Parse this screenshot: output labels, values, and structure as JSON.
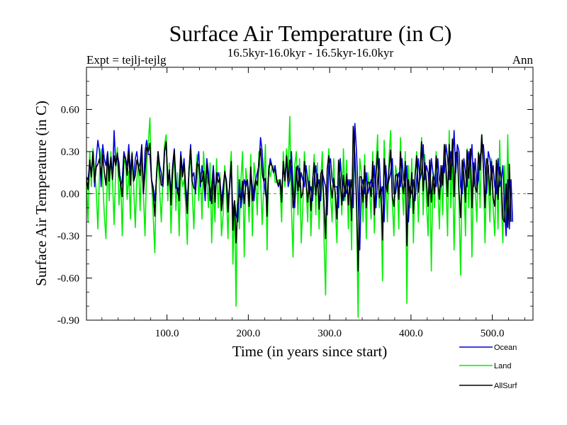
{
  "chart_data": {
    "type": "line",
    "title": "Surface Air Temperature (in C)",
    "subtitle": "16.5kyr-16.0kyr - 16.5kyr-16.0kyr",
    "left_label": "Expt = tejlj-tejlg",
    "right_label": "Ann",
    "xlabel": "Time (in years since start)",
    "ylabel": "Surface Air Temperature (in C)",
    "xlim": [
      1,
      550
    ],
    "ylim": [
      -0.9,
      0.9
    ],
    "x_ticks": [
      100,
      200,
      300,
      400,
      500
    ],
    "x_tick_labels": [
      "100.0",
      "200.0",
      "300.0",
      "400.0",
      "500.0"
    ],
    "y_ticks": [
      -0.9,
      -0.6,
      -0.3,
      0.0,
      0.3,
      0.6
    ],
    "y_tick_labels": [
      "-0.90",
      "-0.60",
      "-0.30",
      "0.00",
      "0.30",
      "0.60"
    ],
    "zero_line": true,
    "x_start": 1,
    "x_step": 2,
    "series": [
      {
        "name": "Land",
        "color": "#00ee00",
        "values": [
          0.08,
          -0.2,
          0.3,
          0.05,
          0.32,
          0.15,
          0.02,
          -0.25,
          0.14,
          0.32,
          0.08,
          -0.15,
          -0.32,
          0.22,
          -0.05,
          0.3,
          0.1,
          -0.22,
          0.18,
          0.33,
          -0.08,
          0.12,
          -0.3,
          0.2,
          0.26,
          -0.04,
          0.16,
          -0.18,
          0.3,
          0.05,
          -0.24,
          0.1,
          0.22,
          -0.12,
          0.28,
          0.0,
          -0.3,
          0.2,
          0.35,
          0.54,
          0.1,
          -0.15,
          -0.42,
          0.15,
          0.28,
          0.02,
          -0.2,
          0.12,
          0.35,
          0.42,
          -0.05,
          0.22,
          -0.28,
          0.1,
          0.3,
          -0.12,
          0.15,
          -0.3,
          0.2,
          0.05,
          0.1,
          -0.08,
          -0.36,
          0.18,
          0.25,
          0.02,
          -0.25,
          0.1,
          0.28,
          -0.05,
          0.15,
          -0.18,
          0.3,
          0.08,
          0.12,
          -0.1,
          0.22,
          -0.35,
          0.05,
          -0.2,
          0.25,
          -0.1,
          0.15,
          -0.3,
          -0.15,
          0.2,
          0.02,
          -0.32,
          0.1,
          0.3,
          -0.5,
          -0.05,
          -0.8,
          0.2,
          -0.25,
          0.1,
          0.3,
          -0.45,
          0.18,
          0.05,
          -0.2,
          0.28,
          -0.3,
          0.22,
          0.1,
          -0.15,
          0.3,
          0.12,
          -0.22,
          0.05,
          0.35,
          -0.4,
          0.2,
          0.12,
          0.18,
          0.2,
          0.08,
          0.08,
          0.1,
          0.05,
          -0.2,
          0.3,
          0.05,
          0.32,
          0.15,
          0.55,
          -0.1,
          -0.45,
          0.2,
          0.3,
          -0.15,
          0.25,
          -0.35,
          -0.1,
          0.3,
          0.08,
          -0.2,
          0.2,
          -0.3,
          0.05,
          0.28,
          -0.15,
          0.22,
          -0.25,
          0.1,
          0.3,
          -0.3,
          -0.72,
          0.15,
          0.32,
          0.0,
          -0.2,
          0.25,
          -0.1,
          -0.35,
          0.2,
          0.1,
          -0.15,
          0.32,
          -0.05,
          0.24,
          -0.25,
          0.1,
          -0.4,
          0.45,
          0.2,
          -0.1,
          -0.88,
          0.25,
          0.15,
          -0.2,
          0.28,
          -0.32,
          0.15,
          0.05,
          -0.18,
          0.3,
          -0.28,
          0.2,
          0.42,
          -0.1,
          0.05,
          -0.62,
          0.38,
          0.1,
          -0.2,
          0.25,
          0.45,
          -0.05,
          -0.3,
          0.2,
          0.12,
          -0.25,
          0.4,
          0.05,
          -0.15,
          0.3,
          -0.78,
          0.2,
          -0.1,
          0.25,
          -0.35,
          0.15,
          0.3,
          -0.2,
          0.1,
          0.4,
          -0.15,
          0.28,
          -0.05,
          -0.3,
          0.22,
          -0.55,
          0.15,
          -0.1,
          0.3,
          0.05,
          -0.25,
          0.2,
          -0.15,
          0.35,
          0.1,
          -0.3,
          0.45,
          -0.1,
          0.25,
          -0.4,
          0.15,
          0.3,
          -0.05,
          -0.58,
          0.2,
          0.1,
          -0.3,
          0.32,
          -0.1,
          0.25,
          -0.45,
          0.15,
          0.05,
          -0.2,
          0.3,
          -0.1,
          0.42,
          0.2,
          -0.35,
          0.15,
          0.1,
          -0.2,
          0.25,
          -0.1,
          -0.3,
          0.2,
          -0.25,
          0.38,
          -0.05,
          -0.35,
          0.2,
          -0.28,
          0.42,
          -0.2
        ]
      },
      {
        "name": "Ocean",
        "color": "#0000dd",
        "values": [
          0.12,
          0.1,
          0.22,
          0.15,
          0.3,
          0.05,
          0.25,
          0.38,
          0.3,
          0.05,
          0.35,
          0.25,
          0.2,
          0.3,
          0.15,
          0.25,
          0.1,
          0.45,
          0.2,
          0.28,
          0.22,
          0.05,
          0.1,
          0.3,
          0.25,
          0.2,
          0.35,
          0.15,
          0.28,
          0.1,
          0.25,
          0.3,
          0.18,
          0.22,
          0.35,
          0.0,
          0.3,
          0.38,
          0.28,
          0.28,
          0.1,
          0.05,
          -0.05,
          0.1,
          0.3,
          0.2,
          0.15,
          0.05,
          0.3,
          0.35,
          0.1,
          0.15,
          0.0,
          0.2,
          0.32,
          0.1,
          0.0,
          0.05,
          0.3,
          0.15,
          0.25,
          0.05,
          -0.05,
          0.15,
          0.35,
          0.12,
          0.15,
          0.0,
          0.2,
          0.3,
          0.05,
          0.2,
          0.1,
          -0.05,
          0.25,
          0.15,
          -0.05,
          0.05,
          0.2,
          0.0,
          0.1,
          0.15,
          0.1,
          -0.05,
          0.05,
          0.15,
          0.1,
          -0.05,
          0.05,
          0.2,
          -0.15,
          -0.05,
          -0.15,
          -0.2,
          0.1,
          -0.1,
          0.0,
          0.1,
          0.05,
          0.1,
          -0.05,
          0.15,
          0.05,
          -0.05,
          0.1,
          0.15,
          0.2,
          0.4,
          0.3,
          0.1,
          0.0,
          -0.05,
          0.15,
          0.25,
          0.2,
          0.15,
          0.2,
          0.1,
          0.05,
          0.1,
          0.0,
          0.2,
          0.1,
          0.25,
          0.05,
          0.1,
          0.3,
          0.05,
          -0.1,
          0.15,
          0.2,
          0.05,
          0.15,
          0.1,
          0.05,
          0.2,
          0.1,
          0.0,
          0.05,
          -0.05,
          0.1,
          0.2,
          0.05,
          0.1,
          -0.05,
          0.15,
          0.1,
          0.05,
          -0.15,
          0.2,
          0.25,
          0.1,
          0.05,
          0.05,
          0.05,
          -0.1,
          0.25,
          0.1,
          -0.05,
          0.05,
          0.0,
          0.1,
          0.0,
          0.1,
          -0.1,
          0.5,
          0.3,
          0.0,
          -0.4,
          0.05,
          0.1,
          0.0,
          0.15,
          0.0,
          0.05,
          0.1,
          0.05,
          0.2,
          -0.1,
          0.1,
          0.25,
          0.0,
          0.05,
          -0.2,
          0.2,
          0.05,
          0.1,
          0.15,
          0.25,
          0.0,
          0.0,
          0.1,
          0.15,
          0.05,
          0.25,
          0.1,
          0.05,
          0.2,
          -0.2,
          0.05,
          0.0,
          0.1,
          -0.05,
          0.1,
          0.25,
          0.1,
          0.15,
          0.35,
          0.1,
          0.2,
          0.15,
          0.0,
          0.25,
          0.15,
          0.1,
          0.05,
          0.25,
          0.1,
          0.05,
          0.2,
          0.15,
          0.35,
          0.25,
          0.1,
          0.3,
          0.2,
          0.45,
          0.15,
          0.35,
          0.3,
          0.05,
          0.0,
          0.25,
          0.15,
          0.05,
          0.3,
          0.2,
          0.35,
          0.05,
          0.25,
          0.05,
          0.1,
          0.28,
          0.3,
          0.35,
          0.2,
          0.0,
          0.3,
          0.25,
          0.1,
          0.2,
          0.05,
          0.0,
          0.25,
          0.05,
          0.1,
          0.2,
          -0.1,
          -0.3,
          0.1,
          -0.25,
          0.1,
          -0.2
        ]
      },
      {
        "name": "AllSurf",
        "color": "#000000",
        "values": [
          0.11,
          0.03,
          0.24,
          0.12,
          0.3,
          0.08,
          0.19,
          0.21,
          0.25,
          0.12,
          0.28,
          0.15,
          0.06,
          0.28,
          0.09,
          0.26,
          0.1,
          0.27,
          0.2,
          0.29,
          0.13,
          0.07,
          -0.02,
          0.27,
          0.25,
          0.13,
          0.3,
          0.06,
          0.29,
          0.09,
          0.13,
          0.24,
          0.19,
          0.13,
          0.33,
          0.0,
          0.15,
          0.33,
          0.3,
          0.36,
          0.1,
          0.01,
          -0.16,
          0.11,
          0.3,
          0.15,
          0.06,
          0.07,
          0.31,
          0.37,
          0.06,
          0.17,
          -0.08,
          0.17,
          0.31,
          0.04,
          0.04,
          -0.05,
          0.27,
          0.12,
          0.21,
          0.01,
          -0.14,
          0.16,
          0.32,
          0.09,
          0.04,
          0.03,
          0.22,
          0.2,
          0.08,
          0.09,
          0.16,
          0.0,
          0.21,
          0.08,
          0.03,
          -0.07,
          0.16,
          -0.06,
          0.15,
          0.08,
          0.11,
          -0.12,
          -0.01,
          0.16,
          0.08,
          -0.13,
          0.06,
          0.23,
          -0.26,
          -0.05,
          -0.35,
          -0.08,
          0.0,
          -0.04,
          0.09,
          -0.07,
          0.09,
          0.09,
          -0.09,
          0.19,
          -0.05,
          0.03,
          0.1,
          0.06,
          0.23,
          0.32,
          0.14,
          0.09,
          0.11,
          -0.16,
          0.16,
          0.22,
          0.2,
          0.16,
          0.17,
          0.09,
          0.06,
          0.1,
          -0.06,
          0.23,
          0.09,
          0.27,
          0.09,
          0.24,
          0.18,
          -0.1,
          -0.02,
          0.19,
          0.02,
          0.18,
          -0.03,
          0.01,
          0.23,
          0.09,
          -0.06,
          0.09,
          -0.12,
          0.09,
          0.22,
          -0.01,
          0.14,
          -0.11,
          0.14,
          0.17,
          -0.06,
          -0.32,
          0.18,
          0.27,
          0.07,
          -0.03,
          0.11,
          0.0,
          -0.18,
          0.24,
          0.1,
          -0.08,
          0.13,
          -0.02,
          0.14,
          -0.08,
          0.1,
          -0.19,
          0.48,
          0.27,
          -0.03,
          -0.55,
          0.12,
          0.12,
          -0.06,
          0.2,
          -0.1,
          0.08,
          0.08,
          -0.02,
          0.23,
          -0.15,
          0.13,
          0.3,
          -0.03,
          0.05,
          -0.33,
          0.25,
          0.07,
          0.01,
          0.18,
          0.31,
          -0.02,
          -0.09,
          0.13,
          0.14,
          -0.04,
          0.3,
          0.08,
          0.0,
          0.23,
          -0.37,
          0.1,
          -0.03,
          0.15,
          -0.14,
          0.12,
          0.27,
          0.01,
          0.14,
          0.37,
          0.02,
          0.22,
          0.09,
          -0.09,
          0.24,
          -0.06,
          0.12,
          0.0,
          0.27,
          0.09,
          -0.04,
          0.2,
          0.06,
          0.35,
          0.2,
          -0.02,
          0.35,
          0.1,
          0.39,
          -0.02,
          0.29,
          0.3,
          0.02,
          -0.17,
          0.24,
          0.14,
          -0.06,
          0.31,
          0.11,
          0.32,
          -0.1,
          0.22,
          0.05,
          0.01,
          0.29,
          0.17,
          0.42,
          0.2,
          -0.1,
          0.25,
          0.2,
          -0.01,
          0.23,
          -0.03,
          -0.09,
          0.24,
          -0.04,
          0.19,
          0.11,
          -0.18,
          -0.2,
          0.07,
          -0.24,
          0.21,
          -0.2
        ]
      }
    ],
    "legend_order": [
      "Ocean",
      "Land",
      "AllSurf"
    ],
    "legend_position": "bottom-right"
  }
}
